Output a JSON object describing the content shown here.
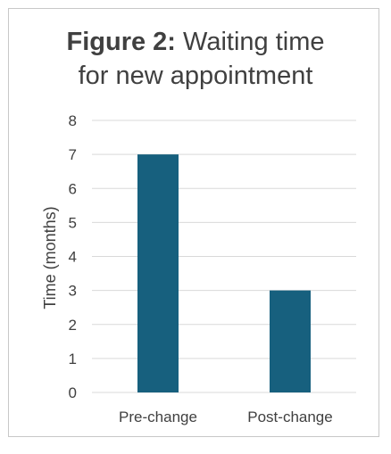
{
  "chart_data": {
    "type": "bar",
    "title_bold": "Figure 2:",
    "title_rest": " Waiting time",
    "title_line2": "for new appointment",
    "ylabel": "Time (months)",
    "xlabel": "",
    "categories": [
      "Pre-change",
      "Post-change"
    ],
    "values": [
      7,
      3
    ],
    "ylim": [
      0,
      8
    ],
    "yticks": [
      "0",
      "1",
      "2",
      "3",
      "4",
      "5",
      "6",
      "7",
      "8"
    ],
    "grid": true,
    "legend": "none",
    "bar_color": "#17607e"
  }
}
